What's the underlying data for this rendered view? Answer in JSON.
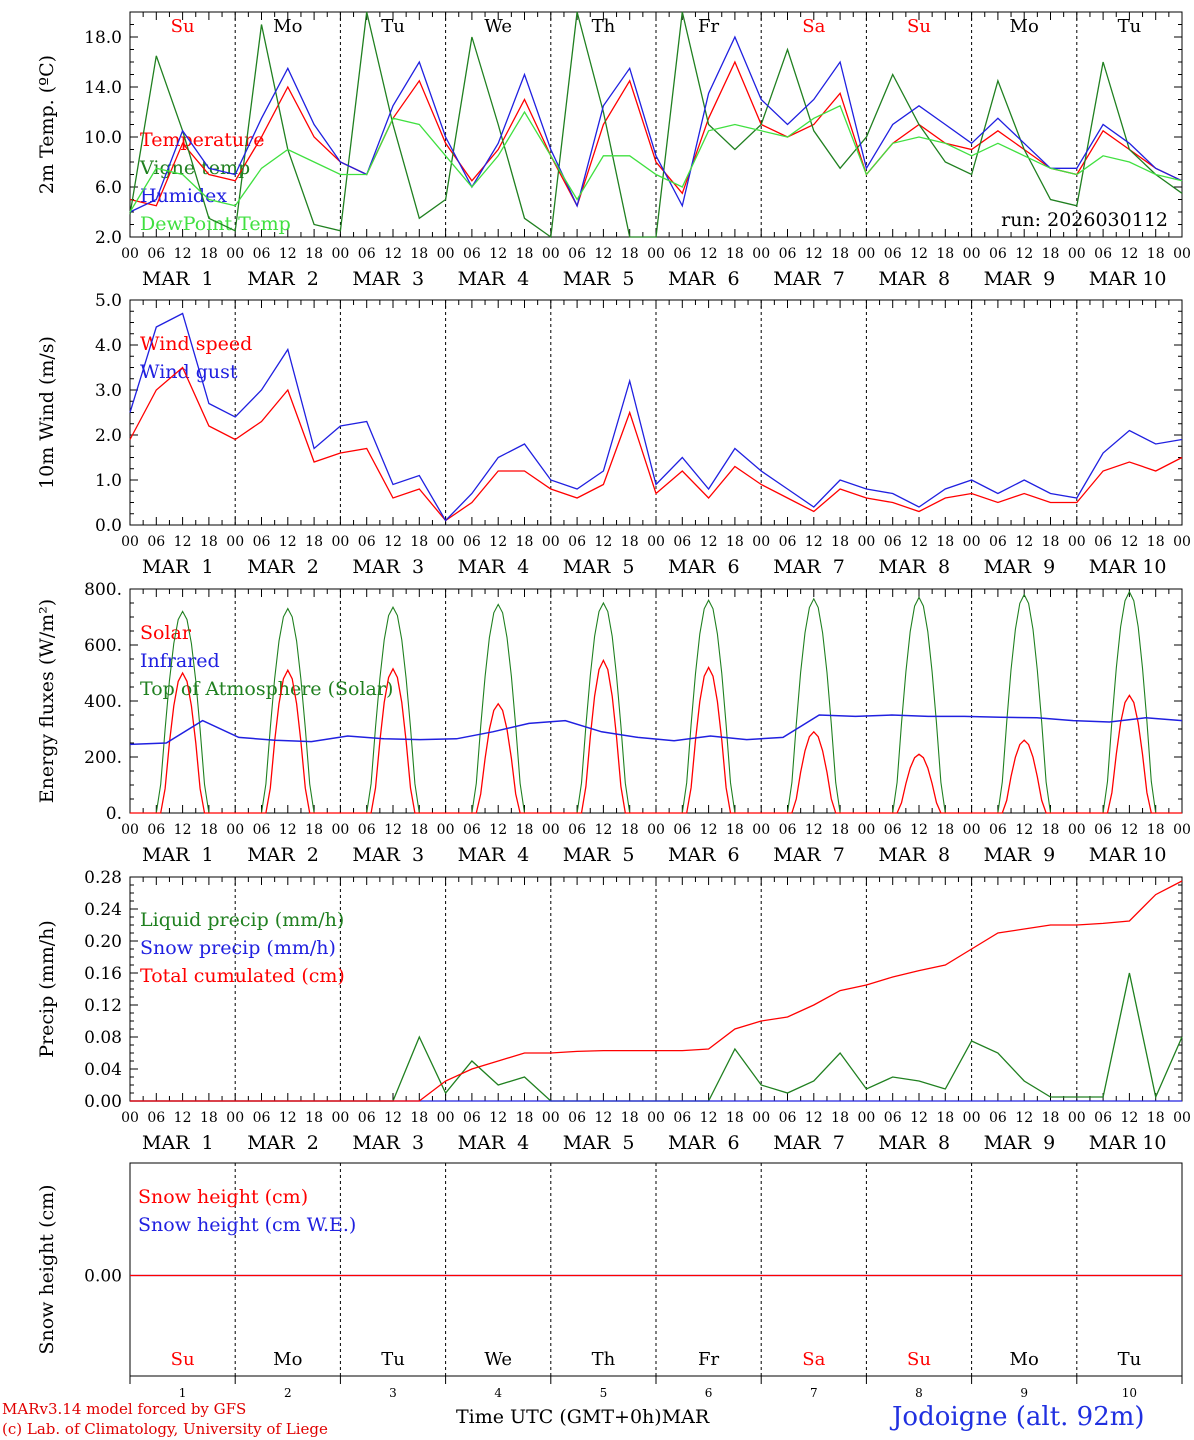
{
  "chart_data": [
    {
      "type": "line",
      "ylabel": "2m Temp. (ºC)",
      "ylim": [
        2,
        20
      ],
      "yticks": [
        "2.0",
        "6.0",
        "10.0",
        "14.0",
        "18.0"
      ],
      "annotation": "run: 2026030112",
      "x_hours": [
        0,
        6,
        12,
        18,
        24,
        30,
        36,
        42,
        48,
        54,
        60,
        66,
        72,
        78,
        84,
        90,
        96,
        102,
        108,
        114,
        120,
        126,
        132,
        138,
        144,
        150,
        156,
        162,
        168,
        174,
        180,
        186,
        192,
        198,
        204,
        210,
        216,
        222,
        228,
        234,
        240
      ],
      "series": [
        {
          "name": "Temperature",
          "color": "#ff0000",
          "values": [
            5.0,
            4.5,
            9.5,
            7.0,
            6.5,
            10.0,
            14.0,
            10.0,
            8.0,
            7.0,
            11.5,
            14.5,
            9.5,
            6.5,
            9.0,
            13.0,
            8.5,
            4.5,
            11.0,
            14.5,
            8.0,
            5.5,
            11.5,
            16.0,
            11.0,
            10.0,
            11.0,
            13.5,
            7.0,
            9.5,
            11.0,
            9.5,
            9.0,
            10.5,
            9.0,
            7.5,
            7.0,
            10.5,
            9.0,
            7.5,
            6.5
          ]
        },
        {
          "name": "Vigne temp",
          "color": "#208020",
          "values": [
            3.8,
            16.5,
            10.5,
            3.5,
            2.5,
            19.0,
            9.0,
            3.0,
            2.5,
            20.0,
            11.0,
            3.5,
            5.0,
            18.0,
            11.0,
            3.5,
            1.5,
            20.0,
            12.0,
            2.0,
            1.5,
            20.0,
            11.0,
            9.0,
            11.0,
            17.0,
            10.5,
            7.5,
            10.0,
            15.0,
            11.0,
            8.0,
            7.0,
            14.5,
            9.0,
            5.0,
            4.5,
            16.0,
            9.0,
            7.0,
            5.5
          ]
        },
        {
          "name": "Humidex",
          "color": "#2020e0",
          "values": [
            4.0,
            5.0,
            10.5,
            7.5,
            7.0,
            11.5,
            15.5,
            11.0,
            8.0,
            7.0,
            12.5,
            16.0,
            10.0,
            6.0,
            9.5,
            15.0,
            9.0,
            4.5,
            12.5,
            15.5,
            8.5,
            4.5,
            13.5,
            18.0,
            13.0,
            11.0,
            13.0,
            16.0,
            7.5,
            11.0,
            12.5,
            11.0,
            9.5,
            11.5,
            9.5,
            7.5,
            7.5,
            11.0,
            9.5,
            7.5,
            6.5
          ]
        },
        {
          "name": "DewPoint Temp",
          "color": "#40e040",
          "values": [
            4.0,
            7.5,
            7.0,
            5.0,
            4.5,
            7.5,
            9.0,
            8.0,
            7.0,
            7.0,
            11.5,
            11.0,
            8.5,
            6.0,
            8.5,
            12.0,
            8.5,
            5.0,
            8.5,
            8.5,
            7.0,
            6.0,
            10.5,
            11.0,
            10.5,
            10.0,
            11.5,
            12.5,
            7.0,
            9.5,
            10.0,
            9.5,
            8.5,
            9.5,
            8.5,
            7.5,
            7.0,
            8.5,
            8.0,
            7.0,
            6.5
          ]
        }
      ]
    },
    {
      "type": "line",
      "ylabel": "10m Wind (m/s)",
      "ylim": [
        0,
        5
      ],
      "yticks": [
        "0.0",
        "1.0",
        "2.0",
        "3.0",
        "4.0",
        "5.0"
      ],
      "x_hours": [
        0,
        6,
        12,
        18,
        24,
        30,
        36,
        42,
        48,
        54,
        60,
        66,
        72,
        78,
        84,
        90,
        96,
        102,
        108,
        114,
        120,
        126,
        132,
        138,
        144,
        150,
        156,
        162,
        168,
        174,
        180,
        186,
        192,
        198,
        204,
        210,
        216,
        222,
        228,
        234,
        240
      ],
      "series": [
        {
          "name": "Wind speed",
          "color": "#ff0000",
          "values": [
            1.9,
            3.0,
            3.5,
            2.2,
            1.9,
            2.3,
            3.0,
            1.4,
            1.6,
            1.7,
            0.6,
            0.8,
            0.1,
            0.5,
            1.2,
            1.2,
            0.8,
            0.6,
            0.9,
            2.5,
            0.7,
            1.2,
            0.6,
            1.3,
            0.9,
            0.6,
            0.3,
            0.8,
            0.6,
            0.5,
            0.3,
            0.6,
            0.7,
            0.5,
            0.7,
            0.5,
            0.5,
            1.2,
            1.4,
            1.2,
            1.5
          ]
        },
        {
          "name": "Wind gust",
          "color": "#2020e0",
          "values": [
            2.5,
            4.4,
            4.7,
            2.7,
            2.4,
            3.0,
            3.9,
            1.7,
            2.2,
            2.3,
            0.9,
            1.1,
            0.1,
            0.7,
            1.5,
            1.8,
            1.0,
            0.8,
            1.2,
            3.2,
            0.9,
            1.5,
            0.8,
            1.7,
            1.2,
            0.8,
            0.4,
            1.0,
            0.8,
            0.7,
            0.4,
            0.8,
            1.0,
            0.7,
            1.0,
            0.7,
            0.6,
            1.6,
            2.1,
            1.8,
            1.9
          ]
        }
      ]
    },
    {
      "type": "line",
      "ylabel": "Energy fluxes (W/m²)",
      "ylim": [
        0,
        800
      ],
      "yticks": [
        "0.",
        "200.",
        "400.",
        "600.",
        "800."
      ],
      "series": [
        {
          "name": "Solar",
          "color": "#ff0000",
          "daily_peaks": [
            500,
            510,
            515,
            390,
            545,
            520,
            290,
            210,
            260,
            420
          ]
        },
        {
          "name": "Infrared",
          "color": "#2020e0",
          "values": [
            245,
            250,
            330,
            270,
            260,
            255,
            275,
            265,
            262,
            265,
            290,
            320,
            330,
            290,
            270,
            258,
            275,
            262,
            270,
            350,
            345,
            350,
            345,
            345,
            342,
            340,
            330,
            325,
            340,
            330
          ]
        },
        {
          "name": "Top of Atmosphere (Solar)",
          "color": "#208020",
          "daily_peaks": [
            720,
            730,
            735,
            745,
            750,
            760,
            765,
            770,
            780,
            790
          ]
        }
      ]
    },
    {
      "type": "line",
      "ylabel": "Precip (mm/h)",
      "ylim": [
        0,
        0.28
      ],
      "yticks": [
        "0.00",
        "0.04",
        "0.08",
        "0.12",
        "0.16",
        "0.20",
        "0.24",
        "0.28"
      ],
      "x_hours": [
        0,
        6,
        12,
        18,
        24,
        30,
        36,
        42,
        48,
        54,
        60,
        66,
        72,
        78,
        84,
        90,
        96,
        102,
        108,
        114,
        120,
        126,
        132,
        138,
        144,
        150,
        156,
        162,
        168,
        174,
        180,
        186,
        192,
        198,
        204,
        210,
        216,
        222,
        228,
        234,
        240
      ],
      "series": [
        {
          "name": "Liquid precip (mm/h)",
          "color": "#208020",
          "values": [
            0,
            0,
            0,
            0,
            0,
            0,
            0,
            0,
            0,
            0,
            0,
            0.08,
            0.01,
            0.05,
            0.02,
            0.03,
            0,
            0,
            0,
            0,
            0,
            0,
            0,
            0.065,
            0.02,
            0.01,
            0.025,
            0.06,
            0.015,
            0.03,
            0.025,
            0.015,
            0.075,
            0.06,
            0.025,
            0.005,
            0.005,
            0.005,
            0.16,
            0.005,
            0.08
          ]
        },
        {
          "name": "Snow precip (mm/h)",
          "color": "#2020e0",
          "values": [
            0,
            0,
            0,
            0,
            0,
            0,
            0,
            0,
            0,
            0,
            0,
            0,
            0,
            0,
            0,
            0,
            0,
            0,
            0,
            0,
            0,
            0,
            0,
            0,
            0,
            0,
            0,
            0,
            0,
            0,
            0,
            0,
            0,
            0,
            0,
            0,
            0,
            0,
            0,
            0,
            0
          ]
        },
        {
          "name": "Total cumulated (cm)",
          "color": "#ff0000",
          "values": [
            0,
            0,
            0,
            0,
            0,
            0,
            0,
            0,
            0,
            0,
            0,
            0,
            0.025,
            0.04,
            0.05,
            0.06,
            0.06,
            0.062,
            0.063,
            0.063,
            0.063,
            0.063,
            0.065,
            0.09,
            0.1,
            0.105,
            0.12,
            0.138,
            0.145,
            0.155,
            0.163,
            0.17,
            0.19,
            0.21,
            0.215,
            0.22,
            0.22,
            0.222,
            0.225,
            0.258,
            0.275
          ]
        }
      ]
    },
    {
      "type": "line",
      "ylabel": "Snow height (cm)",
      "yticks": [
        "0.00"
      ],
      "series": [
        {
          "name": "Snow height (cm)",
          "color": "#ff0000",
          "values": [
            0,
            0
          ]
        },
        {
          "name": "Snow height (cm W.E.)",
          "color": "#2020e0",
          "values": [
            0,
            0
          ]
        }
      ]
    }
  ],
  "hour_ticks": [
    "00",
    "06",
    "12",
    "18"
  ],
  "end_tick": "00",
  "day_labels": [
    "MAR  1",
    "MAR  2",
    "MAR  3",
    "MAR  4",
    "MAR  5",
    "MAR  6",
    "MAR  7",
    "MAR  8",
    "MAR  9",
    "MAR 10"
  ],
  "weekdays": [
    "Su",
    "Mo",
    "Tu",
    "We",
    "Th",
    "Fr",
    "Sa",
    "Su",
    "Mo",
    "Tu"
  ],
  "weekday_colors": [
    "#ff0000",
    "#000000",
    "#000000",
    "#000000",
    "#000000",
    "#000000",
    "#ff0000",
    "#ff0000",
    "#000000",
    "#000000"
  ],
  "day_numbers": [
    "1",
    "2",
    "3",
    "4",
    "5",
    "6",
    "7",
    "8",
    "9",
    "10"
  ],
  "footer": {
    "credit_line1": "MARv3.14 model forced by GFS",
    "credit_line2": "(c) Lab. of Climatology, University of Liege",
    "x_title": "Time UTC (GMT+0h)MAR",
    "station": "Jodoigne (alt. 92m)"
  }
}
